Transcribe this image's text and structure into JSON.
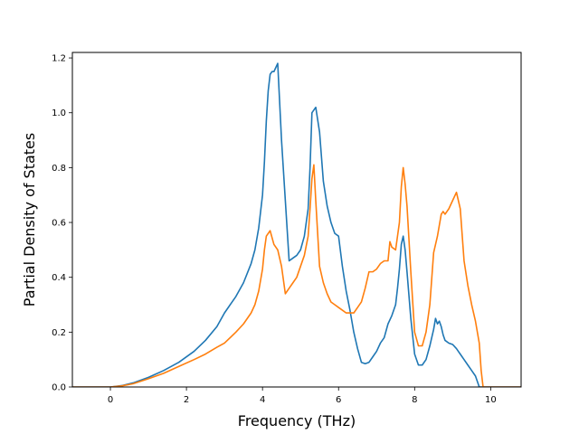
{
  "chart_data": {
    "type": "line",
    "title": "",
    "xlabel": "Frequency (THz)",
    "ylabel": "Partial Density of States",
    "xlim": [
      -1.0,
      10.8
    ],
    "ylim": [
      0.0,
      1.22
    ],
    "xticks": [
      0,
      2,
      4,
      6,
      8,
      10
    ],
    "yticks": [
      0.0,
      0.2,
      0.4,
      0.6,
      0.8,
      1.0,
      1.2
    ],
    "xtick_labels": [
      "0",
      "2",
      "4",
      "6",
      "8",
      "10"
    ],
    "ytick_labels": [
      "0.0",
      "0.2",
      "0.4",
      "0.6",
      "0.8",
      "1.0",
      "1.2"
    ],
    "grid": false,
    "legend": false,
    "series": [
      {
        "color": "#1f77b4",
        "x": [
          -1.0,
          0.0,
          0.3,
          0.6,
          1.0,
          1.4,
          1.8,
          2.2,
          2.5,
          2.8,
          3.0,
          3.3,
          3.5,
          3.7,
          3.8,
          3.9,
          4.0,
          4.05,
          4.1,
          4.15,
          4.2,
          4.25,
          4.3,
          4.4,
          4.5,
          4.6,
          4.7,
          4.8,
          4.9,
          5.0,
          5.1,
          5.15,
          5.2,
          5.25,
          5.3,
          5.4,
          5.5,
          5.6,
          5.7,
          5.8,
          5.9,
          6.0,
          6.1,
          6.2,
          6.3,
          6.4,
          6.5,
          6.6,
          6.7,
          6.8,
          6.9,
          7.0,
          7.1,
          7.2,
          7.3,
          7.4,
          7.5,
          7.55,
          7.6,
          7.65,
          7.7,
          7.75,
          7.8,
          7.9,
          8.0,
          8.1,
          8.2,
          8.3,
          8.4,
          8.5,
          8.55,
          8.6,
          8.65,
          8.7,
          8.75,
          8.8,
          8.9,
          9.0,
          9.1,
          9.2,
          9.3,
          9.4,
          9.5,
          9.6,
          9.7,
          9.75,
          9.8,
          9.85,
          10.0,
          10.8
        ],
        "y": [
          0.0,
          0.0,
          0.005,
          0.015,
          0.035,
          0.06,
          0.09,
          0.13,
          0.17,
          0.22,
          0.27,
          0.33,
          0.38,
          0.45,
          0.5,
          0.58,
          0.7,
          0.82,
          0.97,
          1.08,
          1.14,
          1.15,
          1.15,
          1.18,
          0.9,
          0.68,
          0.46,
          0.47,
          0.48,
          0.5,
          0.55,
          0.6,
          0.65,
          0.8,
          1.0,
          1.02,
          0.93,
          0.75,
          0.66,
          0.6,
          0.56,
          0.55,
          0.44,
          0.35,
          0.28,
          0.2,
          0.14,
          0.09,
          0.085,
          0.09,
          0.11,
          0.13,
          0.16,
          0.18,
          0.23,
          0.26,
          0.3,
          0.36,
          0.43,
          0.52,
          0.55,
          0.5,
          0.42,
          0.25,
          0.12,
          0.08,
          0.08,
          0.1,
          0.15,
          0.21,
          0.25,
          0.23,
          0.24,
          0.22,
          0.19,
          0.17,
          0.16,
          0.155,
          0.14,
          0.12,
          0.1,
          0.08,
          0.06,
          0.04,
          0.0,
          0.0,
          0.0,
          0.0,
          0.0,
          0.0
        ]
      },
      {
        "color": "#ff7f0e",
        "x": [
          -1.0,
          0.0,
          0.3,
          0.6,
          1.0,
          1.4,
          1.8,
          2.2,
          2.5,
          2.8,
          3.0,
          3.3,
          3.5,
          3.7,
          3.8,
          3.9,
          4.0,
          4.05,
          4.1,
          4.2,
          4.3,
          4.4,
          4.5,
          4.6,
          4.7,
          4.8,
          4.9,
          5.0,
          5.1,
          5.2,
          5.25,
          5.3,
          5.35,
          5.4,
          5.5,
          5.6,
          5.7,
          5.8,
          5.9,
          6.0,
          6.1,
          6.2,
          6.3,
          6.4,
          6.5,
          6.6,
          6.7,
          6.8,
          6.9,
          7.0,
          7.1,
          7.2,
          7.3,
          7.35,
          7.4,
          7.5,
          7.55,
          7.6,
          7.65,
          7.7,
          7.75,
          7.8,
          7.9,
          8.0,
          8.1,
          8.2,
          8.3,
          8.4,
          8.5,
          8.6,
          8.7,
          8.75,
          8.8,
          8.9,
          9.0,
          9.1,
          9.2,
          9.3,
          9.4,
          9.5,
          9.6,
          9.7,
          9.75,
          9.8,
          9.85,
          10.0,
          10.8
        ],
        "y": [
          0.0,
          0.0,
          0.004,
          0.012,
          0.03,
          0.05,
          0.075,
          0.1,
          0.12,
          0.145,
          0.16,
          0.2,
          0.23,
          0.27,
          0.3,
          0.35,
          0.43,
          0.5,
          0.55,
          0.57,
          0.52,
          0.5,
          0.44,
          0.34,
          0.36,
          0.38,
          0.4,
          0.44,
          0.48,
          0.55,
          0.65,
          0.76,
          0.81,
          0.68,
          0.44,
          0.38,
          0.34,
          0.31,
          0.3,
          0.29,
          0.28,
          0.27,
          0.27,
          0.27,
          0.29,
          0.31,
          0.36,
          0.42,
          0.42,
          0.43,
          0.45,
          0.46,
          0.46,
          0.53,
          0.51,
          0.5,
          0.55,
          0.6,
          0.73,
          0.8,
          0.74,
          0.66,
          0.42,
          0.2,
          0.15,
          0.15,
          0.2,
          0.3,
          0.49,
          0.55,
          0.63,
          0.64,
          0.63,
          0.65,
          0.68,
          0.71,
          0.65,
          0.46,
          0.37,
          0.3,
          0.24,
          0.16,
          0.06,
          0.0,
          0.0,
          0.0,
          0.0
        ]
      }
    ]
  }
}
